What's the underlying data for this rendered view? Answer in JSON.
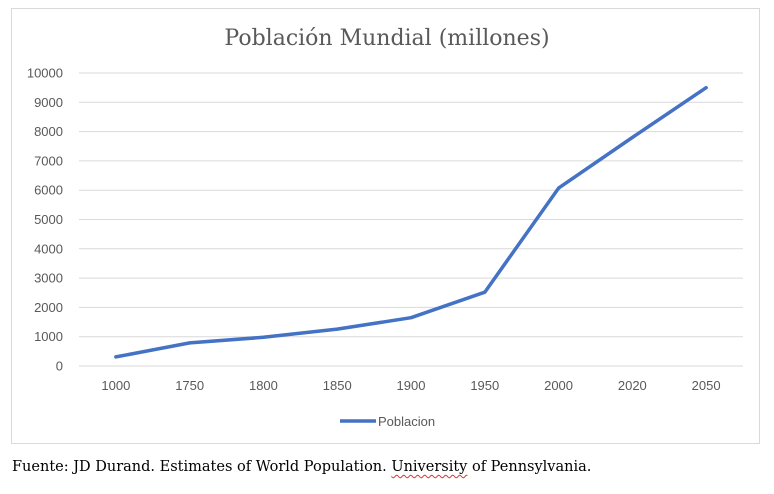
{
  "chart_data": {
    "type": "line",
    "title": "Población Mundial (millones)",
    "categories": [
      "1000",
      "1750",
      "1800",
      "1850",
      "1900",
      "1950",
      "2000",
      "2020",
      "2050"
    ],
    "series": [
      {
        "name": "Poblacion",
        "values": [
          310,
          790,
          980,
          1260,
          1650,
          2520,
          6070,
          7800,
          9500
        ],
        "color": "#4472c4"
      }
    ],
    "ylim": [
      0,
      10000
    ],
    "yticks": [
      "0",
      "1000",
      "2000",
      "3000",
      "4000",
      "5000",
      "6000",
      "7000",
      "8000",
      "9000",
      "10000"
    ],
    "grid": true,
    "legend": "bottom"
  },
  "source_note": {
    "prefix": "Fuente: JD Durand. Estimates of World Population. ",
    "flagged": "University",
    "suffix": " of Pennsylvania."
  }
}
